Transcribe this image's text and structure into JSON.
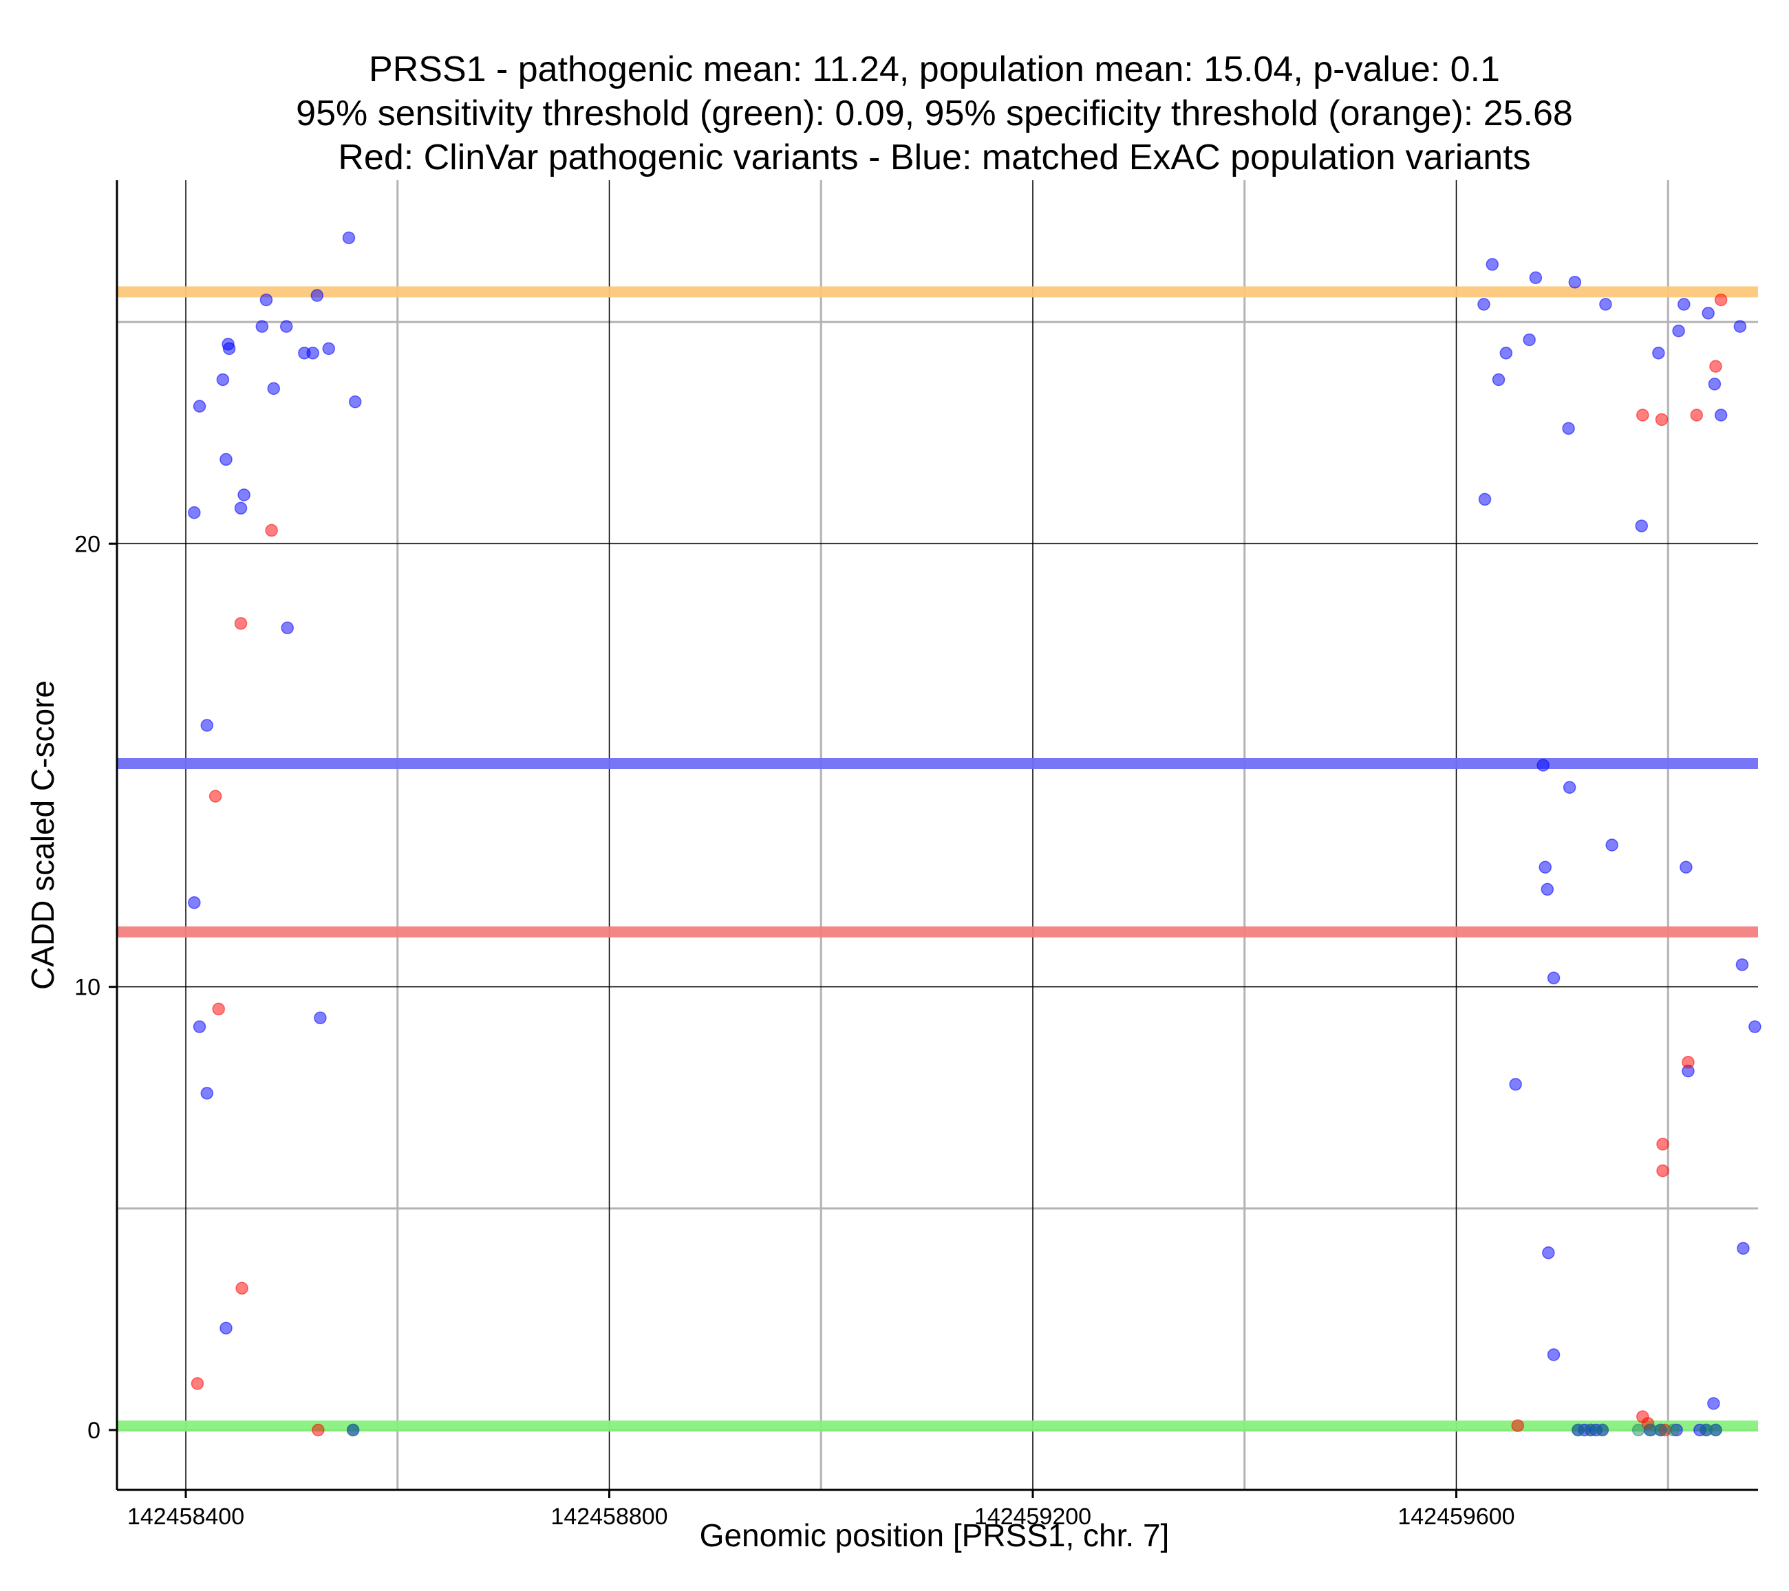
{
  "chart_data": {
    "type": "scatter",
    "title": [
      "PRSS1 - pathogenic mean: 11.24, population mean: 15.04, p-value: 0.1",
      "95% sensitivity threshold (green): 0.09, 95% specificity threshold (orange): 25.68",
      "Red: ClinVar pathogenic variants - Blue: matched ExAC population variants"
    ],
    "xlabel": "Genomic position [PRSS1, chr. 7]",
    "ylabel": "CADD scaled C-score",
    "xlim": [
      142458335,
      142459885
    ],
    "ylim": [
      -1.35,
      28.2
    ],
    "x_ticks": [
      {
        "value": 142458400,
        "label": "142458400"
      },
      {
        "value": 142458800,
        "label": "142458800"
      },
      {
        "value": 142459200,
        "label": "142459200"
      },
      {
        "value": 142459600,
        "label": "142459600"
      }
    ],
    "y_ticks": [
      {
        "value": 0,
        "label": "0"
      },
      {
        "value": 10,
        "label": "10"
      },
      {
        "value": 20,
        "label": "20"
      }
    ],
    "major_gridlines_x": [
      142458400,
      142458800,
      142459200,
      142459600
    ],
    "minor_gridlines_x": [
      142458600,
      142459000,
      142459400,
      142459800
    ],
    "major_gridlines_y": [
      0,
      10,
      20
    ],
    "minor_gridlines_y": [
      5,
      25
    ],
    "grid": true,
    "reference_lines": [
      {
        "name": "specificity-threshold",
        "value": 25.68,
        "color": "#fcc87a"
      },
      {
        "name": "population-mean",
        "value": 15.04,
        "color": "#6f6ff5"
      },
      {
        "name": "pathogenic-mean",
        "value": 11.24,
        "color": "#f47f7f"
      },
      {
        "name": "sensitivity-threshold",
        "value": 0.09,
        "color": "#88f07c"
      }
    ],
    "series": [
      {
        "color": "#0000ff",
        "points": [
          [
            142458408,
            20.7
          ],
          [
            142458408,
            11.9
          ],
          [
            142458413,
            23.1
          ],
          [
            142458413,
            9.1
          ],
          [
            142458420,
            15.9
          ],
          [
            142458420,
            7.6
          ],
          [
            142458435,
            23.7
          ],
          [
            142458438,
            21.9
          ],
          [
            142458438,
            2.3
          ],
          [
            142458440,
            24.5
          ],
          [
            142458441,
            24.4
          ],
          [
            142458452,
            20.8
          ],
          [
            142458455,
            21.1
          ],
          [
            142458472,
            24.9
          ],
          [
            142458476,
            25.5
          ],
          [
            142458483,
            23.5
          ],
          [
            142458495,
            24.9
          ],
          [
            142458496,
            18.1
          ],
          [
            142458512,
            24.3
          ],
          [
            142458520,
            24.3
          ],
          [
            142458524,
            25.6
          ],
          [
            142458527,
            9.3
          ],
          [
            142458535,
            24.4
          ],
          [
            142458554,
            26.9
          ],
          [
            142458560,
            23.2
          ],
          [
            142458558,
            0.0
          ],
          [
            142459626,
            25.4
          ],
          [
            142459627,
            21.0
          ],
          [
            142459634,
            26.3
          ],
          [
            142459640,
            23.7
          ],
          [
            142459647,
            24.3
          ],
          [
            142459656,
            7.8
          ],
          [
            142459669,
            24.6
          ],
          [
            142459675,
            26.0
          ],
          [
            142459682,
            15.0
          ],
          [
            142459684,
            12.7
          ],
          [
            142459686,
            12.2
          ],
          [
            142459687,
            4.0
          ],
          [
            142459692,
            10.2
          ],
          [
            142459692,
            1.7
          ],
          [
            142459706,
            22.6
          ],
          [
            142459707,
            14.5
          ],
          [
            142459712,
            25.9
          ],
          [
            142459741,
            25.4
          ],
          [
            142459747,
            13.2
          ],
          [
            142459775,
            20.4
          ],
          [
            142459791,
            24.3
          ],
          [
            142459810,
            24.8
          ],
          [
            142459815,
            25.4
          ],
          [
            142459817,
            12.7
          ],
          [
            142459819,
            8.1
          ],
          [
            142459838,
            25.2
          ],
          [
            142459844,
            23.6
          ],
          [
            142459850,
            22.9
          ],
          [
            142459868,
            24.9
          ],
          [
            142459870,
            10.5
          ],
          [
            142459871,
            4.1
          ],
          [
            142459843,
            0.6
          ],
          [
            142459882,
            9.1
          ],
          [
            142459715,
            0.0
          ],
          [
            142459721,
            0.0
          ],
          [
            142459727,
            0.0
          ],
          [
            142459732,
            0.0
          ],
          [
            142459738,
            0.0
          ],
          [
            142459783,
            0.0
          ],
          [
            142459793,
            0.0
          ],
          [
            142459808,
            0.0
          ],
          [
            142459830,
            0.0
          ],
          [
            142459836,
            0.0
          ],
          [
            142459845,
            0.0
          ]
        ]
      },
      {
        "color": "#ff0000",
        "points": [
          [
            142458411,
            1.05
          ],
          [
            142458428,
            14.3
          ],
          [
            142458431,
            9.5
          ],
          [
            142458452,
            18.2
          ],
          [
            142458453,
            3.2
          ],
          [
            142458481,
            20.3
          ],
          [
            142458525,
            0.0
          ],
          [
            142459658,
            0.1
          ],
          [
            142459776,
            22.9
          ],
          [
            142459776,
            0.3
          ],
          [
            142459781,
            0.15
          ],
          [
            142459794,
            22.8
          ],
          [
            142459795,
            6.45
          ],
          [
            142459795,
            5.85
          ],
          [
            142459819,
            8.3
          ],
          [
            142459827,
            22.9
          ],
          [
            142459845,
            24.0
          ],
          [
            142459850,
            25.5
          ],
          [
            142459797,
            0.0
          ]
        ]
      },
      {
        "color": "#228b66",
        "points": [
          [
            142458558,
            0.0
          ],
          [
            142459715,
            0.0
          ],
          [
            142459727,
            0.0
          ],
          [
            142459738,
            0.0
          ],
          [
            142459772,
            0.0
          ],
          [
            142459784,
            0.0
          ],
          [
            142459793,
            0.0
          ],
          [
            142459805,
            0.0
          ],
          [
            142459836,
            0.0
          ],
          [
            142459845,
            0.0
          ]
        ]
      }
    ]
  }
}
